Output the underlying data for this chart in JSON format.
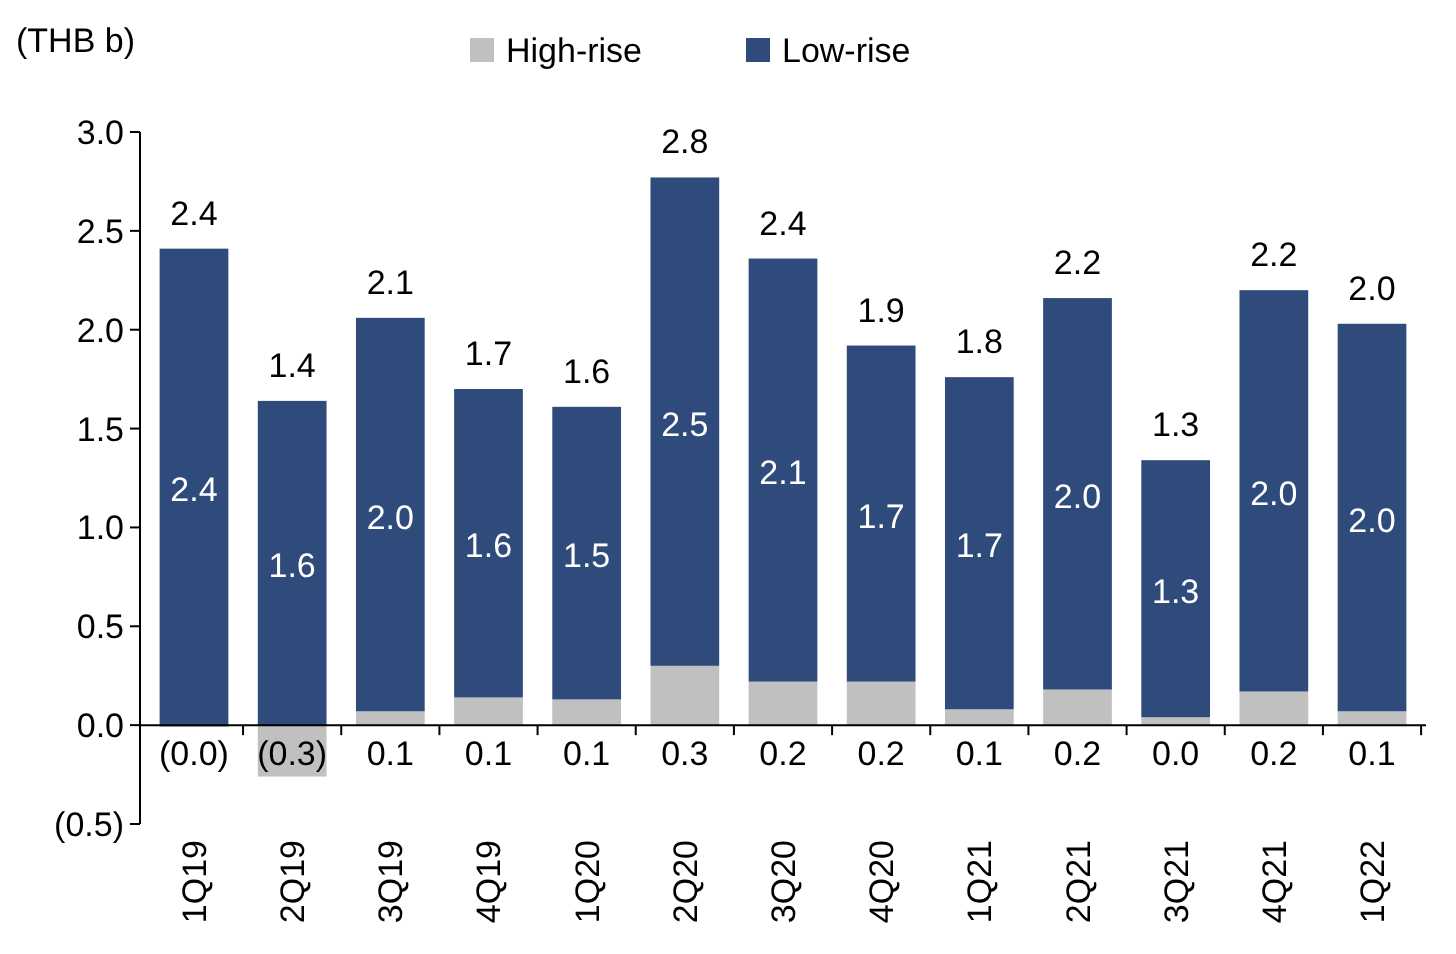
{
  "chart_data": {
    "type": "bar",
    "stacked": true,
    "ylabel": "(THB b)",
    "categories": [
      "1Q19",
      "2Q19",
      "3Q19",
      "4Q19",
      "1Q20",
      "2Q20",
      "3Q20",
      "4Q20",
      "1Q21",
      "2Q21",
      "3Q21",
      "4Q21",
      "1Q22"
    ],
    "series": [
      {
        "name": "High-rise",
        "color": "#c0c0c0",
        "values": [
          -0.01,
          -0.26,
          0.07,
          0.14,
          0.13,
          0.3,
          0.22,
          0.22,
          0.08,
          0.18,
          0.04,
          0.17,
          0.07
        ],
        "value_labels": [
          "(0.0)",
          "(0.3)",
          "0.1",
          "0.1",
          "0.1",
          "0.3",
          "0.2",
          "0.2",
          "0.1",
          "0.2",
          "0.0",
          "0.2",
          "0.1"
        ]
      },
      {
        "name": "Low-rise",
        "color": "#2f4b7c",
        "values": [
          2.41,
          1.64,
          1.99,
          1.56,
          1.48,
          2.47,
          2.14,
          1.7,
          1.68,
          1.98,
          1.3,
          2.03,
          1.96
        ],
        "value_labels": [
          "2.4",
          "1.6",
          "2.0",
          "1.6",
          "1.5",
          "2.5",
          "2.1",
          "1.7",
          "1.7",
          "2.0",
          "1.3",
          "2.0",
          "2.0"
        ]
      }
    ],
    "totals": [
      "2.4",
      "1.4",
      "2.1",
      "1.7",
      "1.6",
      "2.8",
      "2.4",
      "1.9",
      "1.8",
      "2.2",
      "1.3",
      "2.2",
      "2.0"
    ],
    "ylim": [
      -0.5,
      3.0
    ],
    "yticks": [
      {
        "value": -0.5,
        "label": "(0.5)"
      },
      {
        "value": 0,
        "label": "0.0"
      },
      {
        "value": 0.5,
        "label": "0.5"
      },
      {
        "value": 1,
        "label": "1.0"
      },
      {
        "value": 1.5,
        "label": "1.5"
      },
      {
        "value": 2,
        "label": "2.0"
      },
      {
        "value": 2.5,
        "label": "2.5"
      },
      {
        "value": 3,
        "label": "3.0"
      }
    ],
    "legend": "top"
  }
}
